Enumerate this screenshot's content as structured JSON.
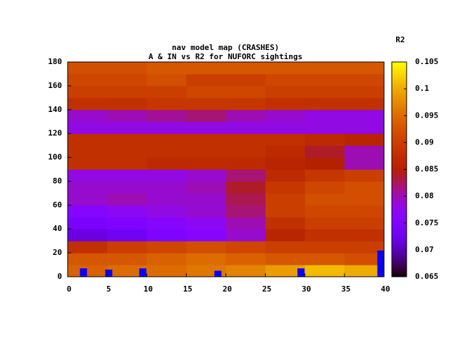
{
  "chart_data": {
    "type": "heatmap",
    "title": "nav model map (CRASHES)",
    "subtitle": "A & IN vs R2 for NUFORC sightings",
    "colorbar_label": "R2",
    "x_bins": [
      0,
      5,
      10,
      15,
      20,
      25,
      30,
      35,
      40
    ],
    "y_bins": [
      0,
      10,
      20,
      30,
      40,
      50,
      60,
      70,
      80,
      90,
      100,
      110,
      120,
      130,
      140,
      150,
      160,
      170,
      180
    ],
    "z": [
      [
        0.094,
        0.095,
        0.095,
        0.096,
        0.097,
        0.099,
        0.101,
        0.1
      ],
      [
        0.093,
        0.093,
        0.094,
        0.095,
        0.094,
        0.093,
        0.093,
        0.092
      ],
      [
        0.088,
        0.09,
        0.091,
        0.092,
        0.091,
        0.09,
        0.09,
        0.09
      ],
      [
        0.072,
        0.073,
        0.075,
        0.076,
        0.079,
        0.086,
        0.088,
        0.088
      ],
      [
        0.074,
        0.075,
        0.076,
        0.077,
        0.08,
        0.088,
        0.09,
        0.09
      ],
      [
        0.076,
        0.077,
        0.078,
        0.079,
        0.082,
        0.09,
        0.091,
        0.091
      ],
      [
        0.079,
        0.08,
        0.079,
        0.079,
        0.083,
        0.09,
        0.092,
        0.092
      ],
      [
        0.079,
        0.079,
        0.079,
        0.08,
        0.084,
        0.089,
        0.091,
        0.092
      ],
      [
        0.078,
        0.078,
        0.078,
        0.079,
        0.082,
        0.087,
        0.089,
        0.09
      ],
      [
        0.088,
        0.088,
        0.087,
        0.087,
        0.087,
        0.086,
        0.085,
        0.08
      ],
      [
        0.088,
        0.088,
        0.088,
        0.088,
        0.088,
        0.087,
        0.084,
        0.08
      ],
      [
        0.088,
        0.088,
        0.088,
        0.088,
        0.088,
        0.088,
        0.087,
        0.086
      ],
      [
        0.078,
        0.078,
        0.078,
        0.078,
        0.078,
        0.078,
        0.078,
        0.078
      ],
      [
        0.079,
        0.08,
        0.081,
        0.082,
        0.08,
        0.079,
        0.078,
        0.078
      ],
      [
        0.088,
        0.088,
        0.089,
        0.089,
        0.089,
        0.088,
        0.088,
        0.088
      ],
      [
        0.09,
        0.09,
        0.09,
        0.091,
        0.091,
        0.09,
        0.09,
        0.09
      ],
      [
        0.091,
        0.091,
        0.092,
        0.09,
        0.09,
        0.091,
        0.091,
        0.091
      ],
      [
        0.092,
        0.092,
        0.093,
        0.093,
        0.093,
        0.093,
        0.093,
        0.093
      ]
    ],
    "markers": {
      "color": "#0000ff",
      "x": [
        2,
        5.2,
        9.5,
        19,
        29.5,
        39.6
      ],
      "y": [
        7,
        6,
        7,
        5,
        7,
        22
      ]
    },
    "xlim": [
      0,
      40
    ],
    "xticks": [
      0,
      5,
      10,
      15,
      20,
      25,
      30,
      35,
      40
    ],
    "ylim": [
      0,
      180
    ],
    "yticks": [
      0,
      20,
      40,
      60,
      80,
      100,
      120,
      140,
      160,
      180
    ],
    "clim": [
      0.065,
      0.105
    ],
    "cticks": [
      0.065,
      0.07,
      0.075,
      0.08,
      0.085,
      0.09,
      0.095,
      0.1,
      0.105
    ]
  }
}
